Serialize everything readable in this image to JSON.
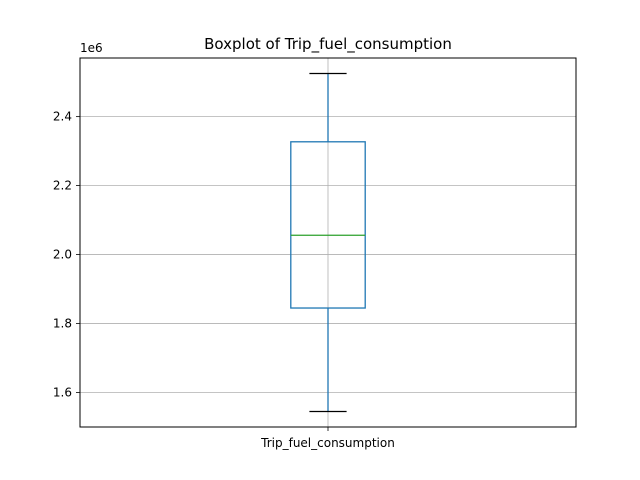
{
  "chart_data": {
    "type": "boxplot",
    "title": "Boxplot of Trip_fuel_consumption",
    "categories": [
      "Trip_fuel_consumption"
    ],
    "y_offset_label": "1e6",
    "y_scale": 1000000,
    "ylim": [
      1.5,
      2.57
    ],
    "y_ticks": [
      1.6,
      1.8,
      2.0,
      2.2,
      2.4
    ],
    "y_tick_labels": [
      "1.6",
      "1.8",
      "2.0",
      "2.2",
      "2.4"
    ],
    "grid": true,
    "boxes": [
      {
        "whisker_low": 1.545,
        "q1": 1.845,
        "median": 2.056,
        "q3": 2.327,
        "whisker_high": 2.525
      }
    ],
    "colors": {
      "box": "#1f77b4",
      "median": "#2ca02c",
      "whisker": "#1f77b4",
      "cap": "#000000",
      "grid": "#b0b0b0",
      "axes": "#000000"
    }
  }
}
